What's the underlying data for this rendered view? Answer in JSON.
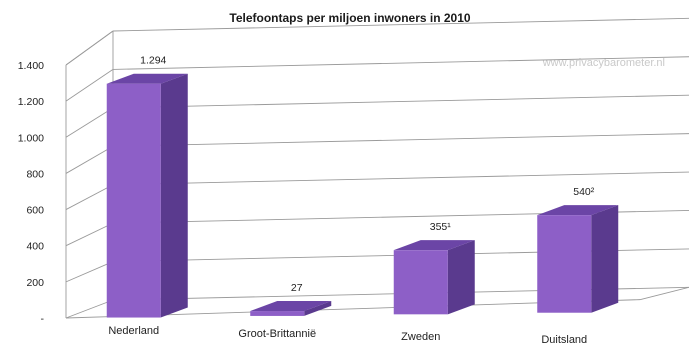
{
  "chart_data": {
    "type": "bar",
    "title": "Telefoontaps per miljoen inwoners in 2010",
    "watermark": "www.privacybarometer.nl",
    "categories": [
      "Nederland",
      "Groot-Brittannië",
      "Zweden",
      "Duitsland"
    ],
    "values": [
      1294,
      27,
      355,
      540
    ],
    "data_labels": [
      "1.294",
      "27",
      "355¹",
      "540²"
    ],
    "ylim": [
      0,
      1400
    ],
    "yticks": [
      "-",
      "200",
      "400",
      "600",
      "800",
      "1.000",
      "1.200",
      "1.400"
    ],
    "ytick_values": [
      0,
      200,
      400,
      600,
      800,
      1000,
      1200,
      1400
    ],
    "grid": true,
    "legend": "none",
    "colors": {
      "front": "#8d5fc7",
      "side": "#5a3a8e",
      "top": "#6b45a6"
    }
  }
}
